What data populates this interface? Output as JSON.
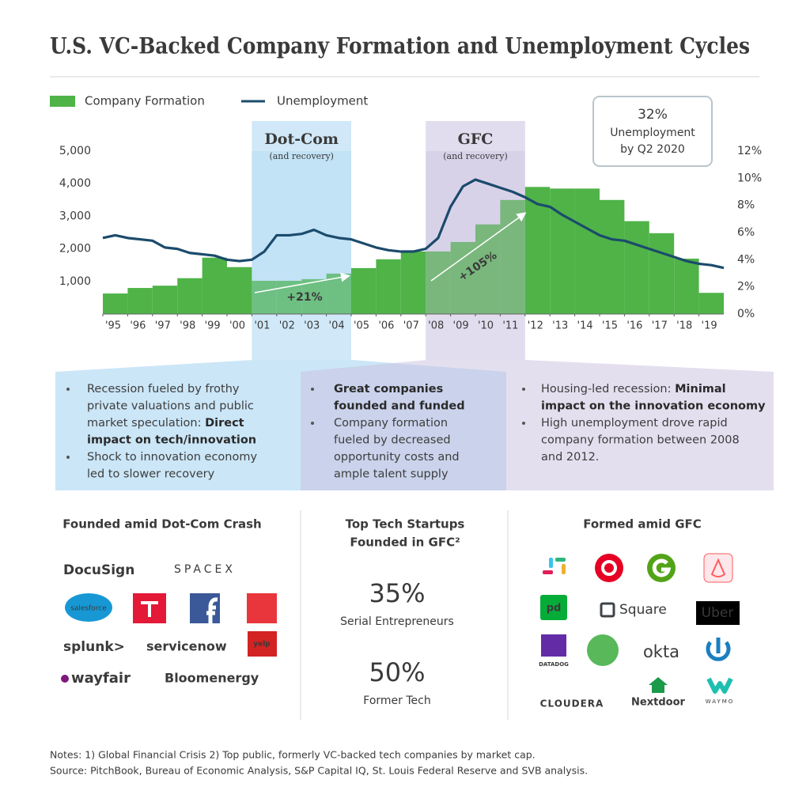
{
  "title": "U.S. VC-Backed Company Formation and Unemployment Cycles",
  "chart_data": {
    "type": "bar",
    "x": [
      1995,
      1996,
      1997,
      1998,
      1999,
      2000,
      2001,
      2002,
      2003,
      2004,
      2005,
      2006,
      2007,
      2008,
      2009,
      2010,
      2011,
      2012,
      2013,
      2014,
      2015,
      2016,
      2017,
      2018,
      2019
    ],
    "xlim": [
      1995,
      2020
    ],
    "xticks": [
      {
        "value": 1995,
        "label": "'95"
      },
      {
        "value": 1996,
        "label": "'96"
      },
      {
        "value": 1997,
        "label": "'97"
      },
      {
        "value": 1998,
        "label": "'98"
      },
      {
        "value": 1999,
        "label": "'99"
      },
      {
        "value": 2000,
        "label": "'00"
      },
      {
        "value": 2001,
        "label": "'01"
      },
      {
        "value": 2002,
        "label": "'02"
      },
      {
        "value": 2003,
        "label": "'03"
      },
      {
        "value": 2004,
        "label": "'04"
      },
      {
        "value": 2005,
        "label": "'05"
      },
      {
        "value": 2006,
        "label": "'06"
      },
      {
        "value": 2007,
        "label": "'07"
      },
      {
        "value": 2008,
        "label": "'08"
      },
      {
        "value": 2009,
        "label": "'09"
      },
      {
        "value": 2010,
        "label": "'10"
      },
      {
        "value": 2011,
        "label": "'11"
      },
      {
        "value": 2012,
        "label": "'12"
      },
      {
        "value": 2013,
        "label": "'13"
      },
      {
        "value": 2014,
        "label": "'14"
      },
      {
        "value": 2015,
        "label": "'15"
      },
      {
        "value": 2016,
        "label": "'16"
      },
      {
        "value": 2017,
        "label": "'17"
      },
      {
        "value": 2018,
        "label": "'18"
      },
      {
        "value": 2019,
        "label": "'19"
      }
    ],
    "ylim": [
      0,
      5000
    ],
    "yticks": [
      {
        "value": 1000,
        "label": "1,000"
      },
      {
        "value": 2000,
        "label": "2,000"
      },
      {
        "value": 3000,
        "label": "3,000"
      },
      {
        "value": 4000,
        "label": "4,000"
      },
      {
        "value": 5000,
        "label": "5,000"
      }
    ],
    "y2lim": [
      0,
      12
    ],
    "y2ticks": [
      {
        "value": 0,
        "label": "0%"
      },
      {
        "value": 2,
        "label": "2%"
      },
      {
        "value": 4,
        "label": "4%"
      },
      {
        "value": 6,
        "label": "6%"
      },
      {
        "value": 8,
        "label": "8%"
      },
      {
        "value": 10,
        "label": "10%"
      },
      {
        "value": 12,
        "label": "12%"
      }
    ],
    "legend": "top-left",
    "series": [
      {
        "name": "Company Formation",
        "type": "bar",
        "color": "#4fb348",
        "values": [
          630,
          800,
          870,
          1100,
          1730,
          1440,
          1020,
          1020,
          1070,
          1240,
          1410,
          1680,
          1920,
          1920,
          2210,
          2750,
          3500,
          3900,
          3850,
          3850,
          3500,
          2850,
          2480,
          1700,
          650
        ]
      },
      {
        "name": "Unemployment",
        "type": "line",
        "axis": "y2",
        "color": "#1b4b6c",
        "x": [
          1995,
          1995.5,
          1996,
          1996.5,
          1997,
          1997.5,
          1998,
          1998.5,
          1999,
          1999.5,
          2000,
          2000.5,
          2001,
          2001.5,
          2002,
          2002.5,
          2003,
          2003.5,
          2004,
          2004.5,
          2005,
          2005.5,
          2006,
          2006.5,
          2007,
          2007.5,
          2008,
          2008.5,
          2009,
          2009.5,
          2010,
          2010.5,
          2011,
          2011.5,
          2012,
          2012.5,
          2013,
          2013.5,
          2014,
          2014.5,
          2015,
          2015.5,
          2016,
          2016.5,
          2017,
          2017.5,
          2018,
          2018.5,
          2019,
          2019.5,
          2020
        ],
        "values": [
          5.6,
          5.8,
          5.6,
          5.5,
          5.4,
          4.9,
          4.8,
          4.5,
          4.4,
          4.3,
          4.0,
          3.9,
          4.0,
          4.6,
          5.8,
          5.8,
          5.9,
          6.2,
          5.8,
          5.6,
          5.5,
          5.2,
          4.9,
          4.7,
          4.6,
          4.6,
          4.8,
          5.6,
          7.9,
          9.4,
          9.9,
          9.6,
          9.3,
          9.0,
          8.6,
          8.1,
          7.9,
          7.3,
          6.8,
          6.3,
          5.8,
          5.5,
          5.4,
          5.1,
          4.8,
          4.5,
          4.2,
          3.9,
          3.7,
          3.6,
          3.4
        ]
      }
    ],
    "bands": [
      {
        "label": "Dot-Com",
        "note": "(and recovery)",
        "x": [
          2001,
          2005
        ],
        "color": "#a9d6f2"
      },
      {
        "label": "GFC",
        "note": "(and recovery)",
        "x": [
          2008,
          2012
        ],
        "color": "#c9bfe0"
      }
    ],
    "annotations": [
      "+21%",
      "+105%"
    ],
    "callout": [
      "32%",
      "Unemployment",
      "by Q2 2020"
    ]
  },
  "panels": [
    {
      "bullets": [
        [
          [
            {
              "text": "Recession fueled by frothy"
            }
          ],
          [
            {
              "text": "private valuations and public"
            }
          ],
          [
            {
              "text": "market speculation: "
            },
            {
              "text": "Direct",
              "bold": true
            }
          ],
          [
            {
              "text": "impact on tech/innovation",
              "bold": true
            }
          ]
        ],
        [
          [
            {
              "text": "Shock to innovation economy"
            }
          ],
          [
            {
              "text": "led to slower recovery"
            }
          ]
        ]
      ]
    },
    {
      "bullets": [
        [
          [
            {
              "text": "Great companies",
              "bold": true
            }
          ],
          [
            {
              "text": "founded and funded",
              "bold": true
            }
          ]
        ],
        [
          [
            {
              "text": "Company formation"
            }
          ],
          [
            {
              "text": "fueled by decreased"
            }
          ],
          [
            {
              "text": "opportunity costs and"
            }
          ],
          [
            {
              "text": "ample talent supply"
            }
          ]
        ]
      ]
    },
    {
      "bullets": [
        [
          [
            {
              "text": "Housing-led recession: "
            },
            {
              "text": "Minimal",
              "bold": true
            }
          ],
          [
            {
              "text": "impact on the innovation economy",
              "bold": true
            }
          ]
        ],
        [
          [
            {
              "text": "High unemployment drove rapid"
            }
          ],
          [
            {
              "text": "company formation between 2008"
            }
          ],
          [
            {
              "text": "and 2012."
            }
          ]
        ]
      ]
    }
  ],
  "sections": [
    {
      "heading": [
        "Founded amid Dot-Com Crash"
      ],
      "companies": [
        "DocuSign",
        "SPACEX",
        "salesforce",
        "splunk>",
        "servicenow",
        "yelp",
        "wayfair",
        "Bloomenergy"
      ]
    },
    {
      "heading": [
        "Top Tech Startups",
        "Founded in GFC²"
      ],
      "stats": [
        {
          "value": "35%",
          "label": "Serial Entrepreneurs"
        },
        {
          "value": "50%",
          "label": "Former Tech"
        }
      ]
    },
    {
      "heading": [
        "Formed amid GFC"
      ],
      "companies": [
        "pd",
        "Square",
        "Uber",
        "DATADOG",
        "okta",
        "CLOUDERA",
        "Nextdoor",
        "WAYMO"
      ]
    }
  ],
  "notes": [
    "Notes: 1) Global Financial Crisis 2) Top public, formerly VC-backed tech companies by market cap.",
    "Source: PitchBook, Bureau of Economic Analysis, S&P Capital IQ, St. Louis Federal Reserve and SVB analysis."
  ]
}
